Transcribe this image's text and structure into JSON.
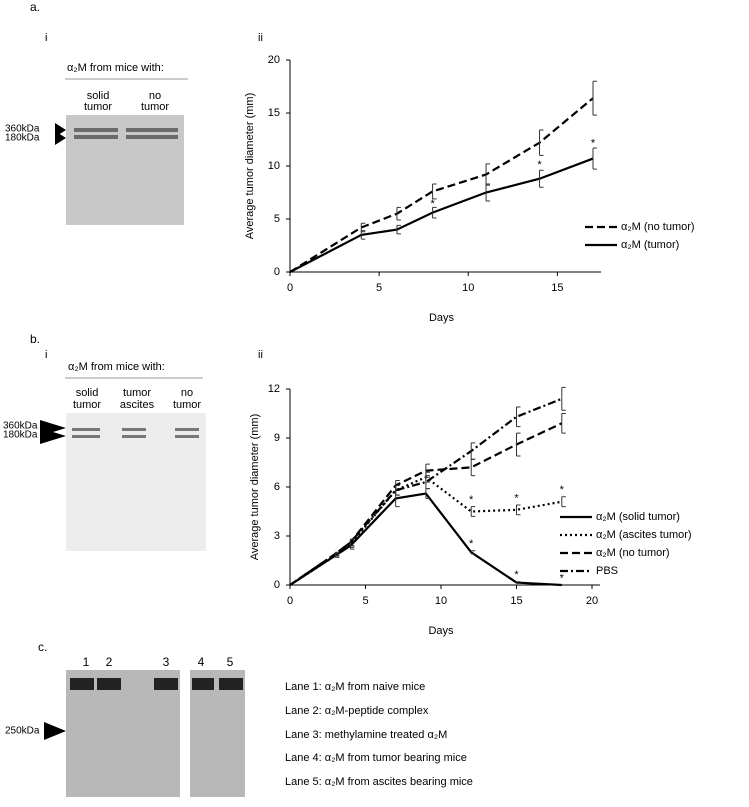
{
  "panels": {
    "a": {
      "label": "a.",
      "gel_label": "i",
      "chart_label": "ii",
      "header": "α₂M from mice with:",
      "lanes": [
        [
          "solid",
          "tumor"
        ],
        [
          "no",
          "tumor"
        ]
      ],
      "markers": [
        "360kDa",
        "180kDa"
      ]
    },
    "b": {
      "label": "b.",
      "gel_label": "i",
      "chart_label": "ii",
      "header": "α₂M from mice with:",
      "lanes": [
        [
          "solid",
          "tumor"
        ],
        [
          "tumor",
          "ascites"
        ],
        [
          "no",
          "tumor"
        ]
      ],
      "markers": [
        "360kDa",
        "180kDa"
      ]
    },
    "c": {
      "label": "c.",
      "lanes": [
        "1",
        "2",
        "3",
        "4",
        "5"
      ],
      "marker": "250kDa",
      "descriptions": [
        "Lane 1: α₂M from naive mice",
        "Lane 2: α₂M-peptide complex",
        "Lane 3: methylamine treated α₂M",
        "Lane 4: α₂M from tumor bearing mice",
        "Lane 5: α₂M from ascites bearing mice"
      ]
    }
  },
  "chart_data": [
    {
      "type": "line",
      "x_label": "Days",
      "y_label": "Average tumor diameter (mm)",
      "xlim": [
        0,
        17
      ],
      "ylim": [
        0,
        20
      ],
      "xticks": [
        0,
        5,
        10,
        15
      ],
      "yticks": [
        0,
        5,
        10,
        15,
        20
      ],
      "grid": false,
      "legend": "right",
      "x": [
        0,
        4,
        6,
        8,
        11,
        14,
        17
      ],
      "series": [
        {
          "name": "α₂M (no tumor)",
          "color": "#000000",
          "style": "dashed",
          "values": [
            0,
            4.2,
            5.5,
            7.6,
            9.2,
            12.2,
            16.4
          ],
          "errors": [
            0,
            0.4,
            0.6,
            0.7,
            1.0,
            1.2,
            1.6
          ]
        },
        {
          "name": "α₂M (tumor)",
          "color": "#000000",
          "style": "solid",
          "values": [
            0,
            3.5,
            4.0,
            5.6,
            7.5,
            8.8,
            10.7
          ],
          "errors": [
            0,
            0.4,
            0.4,
            0.5,
            0.8,
            0.8,
            1.0
          ]
        }
      ],
      "annotations": [
        {
          "text": "*",
          "x": 8,
          "y": 6.4
        },
        {
          "text": "*",
          "x": 14,
          "y": 10.1
        },
        {
          "text": "*",
          "x": 17,
          "y": 12.1
        }
      ]
    },
    {
      "type": "line",
      "x_label": "Days",
      "y_label": "Average tumor diameter (mm)",
      "xlim": [
        0,
        20
      ],
      "ylim": [
        0,
        12
      ],
      "xticks": [
        0,
        5,
        10,
        15,
        20
      ],
      "yticks": [
        0,
        3,
        6,
        9,
        12
      ],
      "grid": false,
      "legend": "right",
      "x": [
        0,
        3,
        4,
        7,
        9,
        12,
        15,
        18
      ],
      "series": [
        {
          "name": "α₂M (solid tumor)",
          "color": "#000000",
          "style": "solid",
          "values": [
            0,
            1.8,
            2.4,
            5.3,
            5.6,
            2.0,
            0.15,
            0
          ],
          "errors": [
            0,
            0.1,
            0.2,
            0.5,
            0.3,
            0.1,
            0.05,
            0
          ]
        },
        {
          "name": "α₂M (ascites tumor)",
          "color": "#000000",
          "style": "dotted",
          "values": [
            0,
            1.8,
            2.5,
            5.8,
            6.6,
            4.5,
            4.6,
            5.1
          ],
          "errors": [
            0,
            0.1,
            0.2,
            0.3,
            0.3,
            0.3,
            0.3,
            0.3
          ]
        },
        {
          "name": "α₂M (no tumor)",
          "color": "#000000",
          "style": "dashed",
          "values": [
            0,
            1.9,
            2.6,
            6.1,
            7.0,
            7.2,
            8.6,
            9.9
          ],
          "errors": [
            0,
            0.1,
            0.2,
            0.3,
            0.4,
            0.5,
            0.7,
            0.6
          ]
        },
        {
          "name": "PBS",
          "color": "#000000",
          "style": "dashdot",
          "values": [
            0,
            1.9,
            2.6,
            5.8,
            6.3,
            8.2,
            10.3,
            11.4
          ],
          "errors": [
            0,
            0.1,
            0.2,
            0.3,
            0.4,
            0.5,
            0.6,
            0.7
          ]
        }
      ],
      "annotations": [
        {
          "text": "*",
          "x": 12,
          "y": 2.5
        },
        {
          "text": "*",
          "x": 15,
          "y": 0.6
        },
        {
          "text": "*",
          "x": 18,
          "y": 0.4
        },
        {
          "text": "*",
          "x": 12,
          "y": 5.2
        },
        {
          "text": "*",
          "x": 15,
          "y": 5.3
        },
        {
          "text": "*",
          "x": 18,
          "y": 5.8
        }
      ]
    }
  ]
}
